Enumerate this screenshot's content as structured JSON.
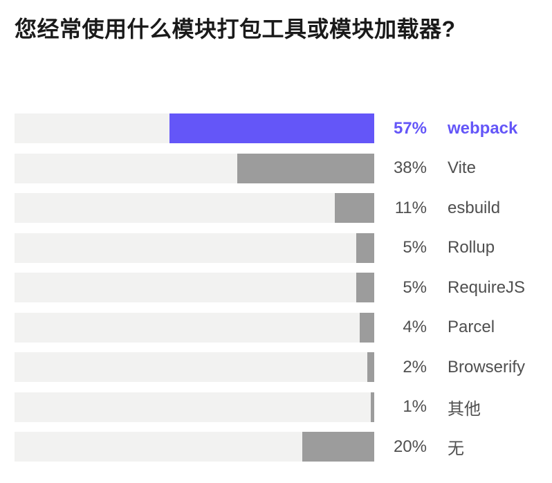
{
  "colors": {
    "accent": "#6456F8",
    "bar": "#9C9C9C",
    "track": "#F2F2F1",
    "title_text": "#1A1A1A",
    "label_text": "#4F4F4F",
    "background": "#FFFFFF"
  },
  "chart_data": {
    "type": "bar",
    "orientation": "horizontal",
    "bars_anchored": "right",
    "title": "您经常使用什么模块打包工具或模块加载器?",
    "xlim": [
      0,
      100
    ],
    "grid": false,
    "legend": "none",
    "categories": [
      "webpack",
      "Vite",
      "esbuild",
      "Rollup",
      "RequireJS",
      "Parcel",
      "Browserify",
      "其他",
      "无"
    ],
    "values": [
      57,
      38,
      11,
      5,
      5,
      4,
      2,
      1,
      20
    ],
    "value_labels": [
      "57%",
      "38%",
      "11%",
      "5%",
      "5%",
      "4%",
      "2%",
      "1%",
      "20%"
    ],
    "highlighted_index": 0,
    "highlighted_category": "webpack"
  }
}
